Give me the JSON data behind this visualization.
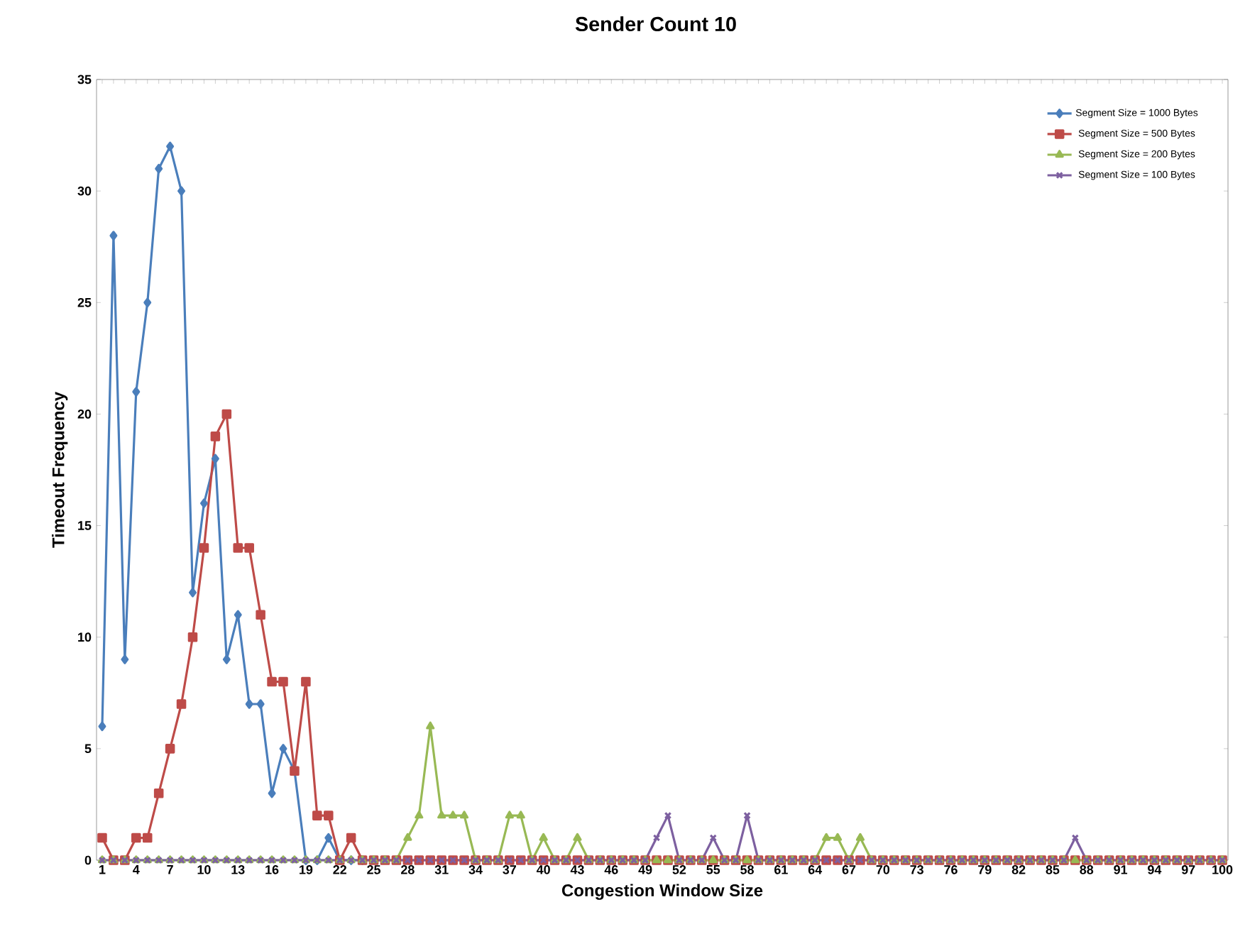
{
  "chart_data": {
    "type": "line",
    "title": "Sender Count 10",
    "xlabel": "Congestion Window Size",
    "ylabel": "Timeout Frequency",
    "categories": [
      "1",
      null,
      null,
      "4",
      null,
      null,
      "7",
      null,
      null,
      "10",
      null,
      null,
      "13",
      null,
      null,
      "16",
      null,
      null,
      "19",
      null,
      null,
      "22",
      null,
      null,
      "25",
      null,
      null,
      "28",
      null,
      null,
      "31",
      null,
      null,
      "34",
      null,
      null,
      "37",
      null,
      null,
      "40",
      null,
      null,
      "43",
      null,
      null,
      "46",
      null,
      null,
      "49",
      null,
      null,
      "52",
      null,
      null,
      "55",
      null,
      null,
      "58",
      null,
      null,
      "61",
      null,
      null,
      "64",
      null,
      null,
      "67",
      null,
      null,
      "70",
      null,
      null,
      "73",
      null,
      null,
      "76",
      null,
      null,
      "79",
      null,
      null,
      "82",
      null,
      null,
      "85",
      null,
      null,
      "88",
      null,
      null,
      "91",
      null,
      null,
      "94",
      null,
      null,
      "97",
      null,
      null,
      "100"
    ],
    "ylim": [
      0,
      35
    ],
    "yticks": [
      0,
      5,
      10,
      15,
      20,
      25,
      30,
      35
    ],
    "grid": false,
    "legend": "top right",
    "series": [
      {
        "name": "Segment Size = 1000 Bytes",
        "color": "#4a7ebb",
        "marker": "diamond",
        "values": [
          6,
          28,
          9,
          21,
          25,
          31,
          32,
          30,
          12,
          16,
          18,
          9,
          11,
          7,
          7,
          3,
          5,
          4,
          0,
          0,
          1,
          0,
          0,
          0,
          null,
          null,
          null,
          null,
          null,
          null,
          null,
          null,
          null,
          null,
          null,
          null,
          null,
          null,
          null,
          null,
          null,
          null,
          null,
          null,
          null,
          null,
          null,
          null,
          null,
          null,
          null,
          null,
          null,
          null,
          null,
          null,
          null,
          null,
          null,
          null,
          null,
          null,
          null,
          null,
          null,
          null,
          null,
          null,
          null,
          null,
          null,
          null,
          null,
          null,
          null,
          null,
          null,
          null,
          null,
          null,
          null,
          null,
          null,
          null,
          null,
          null,
          null,
          null,
          null,
          null,
          null,
          null,
          null,
          null,
          null,
          null,
          null,
          null,
          null,
          null
        ]
      },
      {
        "name": "Segment Size = 500 Bytes",
        "color": "#be4b48",
        "marker": "square",
        "values": [
          1,
          0,
          0,
          1,
          1,
          3,
          5,
          7,
          10,
          14,
          19,
          20,
          14,
          14,
          11,
          8,
          8,
          4,
          8,
          2,
          2,
          0,
          1,
          0,
          0,
          0,
          0,
          0,
          0,
          0,
          0,
          0,
          0,
          0,
          0,
          0,
          0,
          0,
          0,
          0,
          0,
          0,
          0,
          0,
          0,
          0,
          0,
          0,
          0,
          0,
          0,
          0,
          0,
          0,
          0,
          0,
          0,
          0,
          0,
          0,
          0,
          0,
          0,
          0,
          0,
          0,
          0,
          0,
          0,
          0,
          0,
          0,
          0,
          0,
          0,
          0,
          0,
          0,
          0,
          0,
          0,
          0,
          0,
          0,
          0,
          0,
          0,
          0,
          0,
          0,
          0,
          0,
          0,
          0,
          0,
          0,
          0,
          0,
          0,
          0
        ]
      },
      {
        "name": "Segment Size = 200 Bytes",
        "color": "#98b954",
        "marker": "triangle",
        "values": [
          0,
          0,
          0,
          0,
          0,
          0,
          0,
          0,
          0,
          0,
          0,
          0,
          0,
          0,
          0,
          0,
          0,
          0,
          0,
          0,
          0,
          0,
          0,
          0,
          0,
          0,
          0,
          1,
          2,
          6,
          2,
          2,
          2,
          0,
          0,
          0,
          2,
          2,
          0,
          1,
          0,
          0,
          1,
          0,
          0,
          0,
          0,
          0,
          0,
          0,
          0,
          0,
          0,
          0,
          0,
          0,
          0,
          0,
          0,
          0,
          0,
          0,
          0,
          0,
          1,
          1,
          0,
          1,
          0,
          0,
          0,
          0,
          0,
          0,
          0,
          0,
          0,
          0,
          0,
          0,
          0,
          0,
          0,
          0,
          0,
          0,
          0,
          0,
          0,
          0,
          0,
          0,
          0,
          0,
          0,
          0,
          0,
          0,
          0,
          0
        ]
      },
      {
        "name": "Segment Size = 100 Bytes",
        "color": "#7d60a0",
        "marker": "cross",
        "values": [
          0,
          0,
          0,
          0,
          0,
          0,
          0,
          0,
          0,
          0,
          0,
          0,
          0,
          0,
          0,
          0,
          0,
          0,
          0,
          0,
          0,
          0,
          0,
          0,
          0,
          0,
          0,
          0,
          0,
          0,
          0,
          0,
          0,
          0,
          0,
          0,
          0,
          0,
          0,
          0,
          0,
          0,
          0,
          0,
          0,
          0,
          0,
          0,
          0,
          1,
          2,
          0,
          0,
          0,
          1,
          0,
          0,
          2,
          0,
          0,
          0,
          0,
          0,
          0,
          0,
          0,
          0,
          0,
          0,
          0,
          0,
          0,
          0,
          0,
          0,
          0,
          0,
          0,
          0,
          0,
          0,
          0,
          0,
          0,
          0,
          0,
          1,
          0,
          0,
          0,
          0,
          0,
          0,
          0,
          0,
          0,
          0,
          0,
          0,
          0
        ]
      }
    ]
  }
}
